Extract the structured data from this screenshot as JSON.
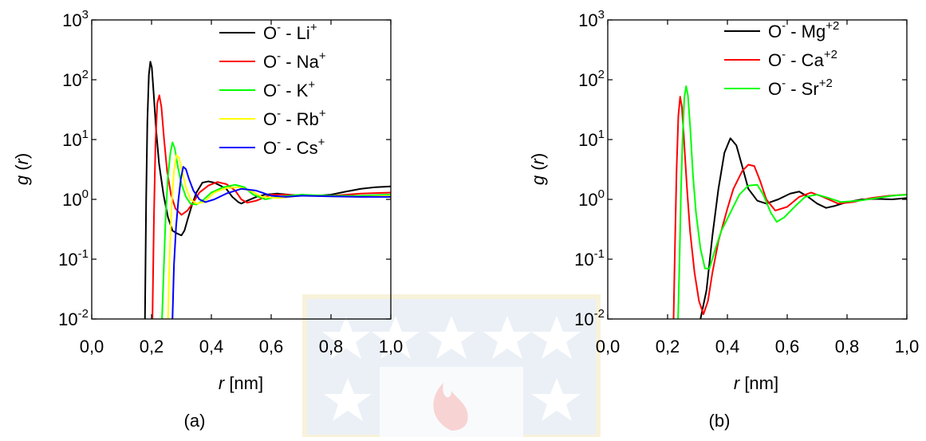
{
  "chart_data": [
    {
      "type": "line",
      "panel_label": "(a)",
      "xlabel_italic": "r",
      "xlabel_unit": " [nm]",
      "ylabel_italic_1": "g",
      "ylabel_mid": " (",
      "ylabel_italic_2": "r",
      "ylabel_end": ")",
      "xlim": [
        0.0,
        1.0
      ],
      "ylim": [
        0.01,
        1000
      ],
      "yscale": "log",
      "grid": false,
      "legend_position": "top-right",
      "x_ticks": [
        {
          "value": 0.0,
          "label": "0,0"
        },
        {
          "value": 0.2,
          "label": "0,2"
        },
        {
          "value": 0.4,
          "label": "0,4"
        },
        {
          "value": 0.6,
          "label": "0,6"
        },
        {
          "value": 0.8,
          "label": "0,8"
        },
        {
          "value": 1.0,
          "label": "1,0"
        }
      ],
      "y_ticks": [
        {
          "value": 1000,
          "base": "10",
          "exp": "3"
        },
        {
          "value": 100,
          "base": "10",
          "exp": "2"
        },
        {
          "value": 10,
          "base": "10",
          "exp": "1"
        },
        {
          "value": 1,
          "base": "10",
          "exp": "0"
        },
        {
          "value": 0.1,
          "base": "10",
          "exp": "-1"
        },
        {
          "value": 0.01,
          "base": "10",
          "exp": "-2"
        }
      ],
      "series": [
        {
          "label_main": "O",
          "label_sup1": "-",
          "label_mid": " - Li",
          "label_sup2": "+",
          "color": "#000000",
          "points": [
            [
              0.178,
              0.01
            ],
            [
              0.182,
              1
            ],
            [
              0.186,
              20
            ],
            [
              0.191,
              120
            ],
            [
              0.196,
              200
            ],
            [
              0.201,
              160
            ],
            [
              0.207,
              60
            ],
            [
              0.215,
              15
            ],
            [
              0.225,
              4
            ],
            [
              0.24,
              1.2
            ],
            [
              0.255,
              0.5
            ],
            [
              0.27,
              0.3
            ],
            [
              0.285,
              0.27
            ],
            [
              0.3,
              0.25
            ],
            [
              0.31,
              0.3
            ],
            [
              0.32,
              0.45
            ],
            [
              0.335,
              0.8
            ],
            [
              0.35,
              1.3
            ],
            [
              0.37,
              1.9
            ],
            [
              0.39,
              2.0
            ],
            [
              0.41,
              1.9
            ],
            [
              0.43,
              1.7
            ],
            [
              0.45,
              1.5
            ],
            [
              0.47,
              1.1
            ],
            [
              0.49,
              0.9
            ],
            [
              0.5,
              0.85
            ],
            [
              0.52,
              0.95
            ],
            [
              0.55,
              1.1
            ],
            [
              0.58,
              1.2
            ],
            [
              0.62,
              1.25
            ],
            [
              0.66,
              1.2
            ],
            [
              0.7,
              1.15
            ],
            [
              0.75,
              1.15
            ],
            [
              0.8,
              1.2
            ],
            [
              0.85,
              1.35
            ],
            [
              0.9,
              1.5
            ],
            [
              0.95,
              1.6
            ],
            [
              1.0,
              1.65
            ]
          ]
        },
        {
          "label_main": "O",
          "label_sup1": "-",
          "label_mid": " - Na",
          "label_sup2": "+",
          "color": "#ff0000",
          "points": [
            [
              0.203,
              0.01
            ],
            [
              0.208,
              0.5
            ],
            [
              0.213,
              8
            ],
            [
              0.219,
              40
            ],
            [
              0.226,
              55
            ],
            [
              0.233,
              35
            ],
            [
              0.242,
              10
            ],
            [
              0.252,
              3
            ],
            [
              0.265,
              1.2
            ],
            [
              0.28,
              0.7
            ],
            [
              0.3,
              0.55
            ],
            [
              0.32,
              0.65
            ],
            [
              0.34,
              0.9
            ],
            [
              0.36,
              1.3
            ],
            [
              0.39,
              1.7
            ],
            [
              0.42,
              1.95
            ],
            [
              0.45,
              1.8
            ],
            [
              0.48,
              1.4
            ],
            [
              0.5,
              1.0
            ],
            [
              0.52,
              0.88
            ],
            [
              0.55,
              0.95
            ],
            [
              0.6,
              1.2
            ],
            [
              0.65,
              1.2
            ],
            [
              0.7,
              1.15
            ],
            [
              0.8,
              1.15
            ],
            [
              0.9,
              1.25
            ],
            [
              1.0,
              1.3
            ]
          ]
        },
        {
          "label_main": "O",
          "label_sup1": "-",
          "label_mid": " - K",
          "label_sup2": "+",
          "color": "#00ff00",
          "points": [
            [
              0.235,
              0.01
            ],
            [
              0.24,
              0.05
            ],
            [
              0.247,
              0.5
            ],
            [
              0.255,
              2.5
            ],
            [
              0.263,
              6
            ],
            [
              0.27,
              9
            ],
            [
              0.278,
              7
            ],
            [
              0.288,
              3.5
            ],
            [
              0.3,
              1.8
            ],
            [
              0.315,
              1.1
            ],
            [
              0.33,
              0.85
            ],
            [
              0.35,
              0.82
            ],
            [
              0.37,
              0.95
            ],
            [
              0.4,
              1.3
            ],
            [
              0.44,
              1.6
            ],
            [
              0.48,
              1.75
            ],
            [
              0.51,
              1.6
            ],
            [
              0.54,
              1.2
            ],
            [
              0.58,
              1.0
            ],
            [
              0.62,
              1.1
            ],
            [
              0.7,
              1.2
            ],
            [
              0.8,
              1.15
            ],
            [
              0.9,
              1.15
            ],
            [
              1.0,
              1.2
            ]
          ]
        },
        {
          "label_main": "O",
          "label_sup1": "-",
          "label_mid": " - Rb",
          "label_sup2": "+",
          "color": "#ffff00",
          "points": [
            [
              0.255,
              0.01
            ],
            [
              0.26,
              0.1
            ],
            [
              0.267,
              0.8
            ],
            [
              0.275,
              3
            ],
            [
              0.283,
              5.5
            ],
            [
              0.292,
              5
            ],
            [
              0.302,
              3
            ],
            [
              0.315,
              1.6
            ],
            [
              0.33,
              1.0
            ],
            [
              0.35,
              0.85
            ],
            [
              0.375,
              0.9
            ],
            [
              0.41,
              1.3
            ],
            [
              0.45,
              1.55
            ],
            [
              0.49,
              1.6
            ],
            [
              0.53,
              1.4
            ],
            [
              0.57,
              1.1
            ],
            [
              0.62,
              1.05
            ],
            [
              0.7,
              1.15
            ],
            [
              0.8,
              1.12
            ],
            [
              0.9,
              1.1
            ],
            [
              1.0,
              1.15
            ]
          ]
        },
        {
          "label_main": "O",
          "label_sup1": "-",
          "label_mid": " - Cs",
          "label_sup2": "+",
          "color": "#0000ff",
          "points": [
            [
              0.27,
              0.01
            ],
            [
              0.275,
              0.08
            ],
            [
              0.282,
              0.35
            ],
            [
              0.29,
              1.0
            ],
            [
              0.298,
              2.2
            ],
            [
              0.306,
              3.5
            ],
            [
              0.315,
              3.2
            ],
            [
              0.325,
              2.2
            ],
            [
              0.34,
              1.4
            ],
            [
              0.36,
              1.0
            ],
            [
              0.38,
              0.9
            ],
            [
              0.41,
              1.0
            ],
            [
              0.45,
              1.25
            ],
            [
              0.5,
              1.5
            ],
            [
              0.55,
              1.4
            ],
            [
              0.6,
              1.15
            ],
            [
              0.65,
              1.1
            ],
            [
              0.7,
              1.15
            ],
            [
              0.8,
              1.12
            ],
            [
              0.9,
              1.1
            ],
            [
              1.0,
              1.1
            ]
          ]
        }
      ]
    },
    {
      "type": "line",
      "panel_label": "(b)",
      "xlabel_italic": "r",
      "xlabel_unit": " [nm]",
      "ylabel_italic_1": "g",
      "ylabel_mid": " (",
      "ylabel_italic_2": "r",
      "ylabel_end": ")",
      "xlim": [
        0.0,
        1.0
      ],
      "ylim": [
        0.01,
        1000
      ],
      "yscale": "log",
      "grid": false,
      "legend_position": "top-right",
      "x_ticks": [
        {
          "value": 0.0,
          "label": "0,0"
        },
        {
          "value": 0.2,
          "label": "0,2"
        },
        {
          "value": 0.4,
          "label": "0,4"
        },
        {
          "value": 0.6,
          "label": "0,6"
        },
        {
          "value": 0.8,
          "label": "0,8"
        },
        {
          "value": 1.0,
          "label": "1,0"
        }
      ],
      "y_ticks": [
        {
          "value": 1000,
          "base": "10",
          "exp": "3"
        },
        {
          "value": 100,
          "base": "10",
          "exp": "2"
        },
        {
          "value": 10,
          "base": "10",
          "exp": "1"
        },
        {
          "value": 1,
          "base": "10",
          "exp": "0"
        },
        {
          "value": 0.1,
          "base": "10",
          "exp": "-1"
        },
        {
          "value": 0.01,
          "base": "10",
          "exp": "-2"
        }
      ],
      "series": [
        {
          "label_main": "O",
          "label_sup1": "-",
          "label_mid": " - Mg",
          "label_sup2": "+2",
          "color": "#000000",
          "points": [
            [
              0.31,
              0.01
            ],
            [
              0.33,
              0.03
            ],
            [
              0.35,
              0.25
            ],
            [
              0.37,
              1.5
            ],
            [
              0.39,
              6
            ],
            [
              0.41,
              10.5
            ],
            [
              0.43,
              8
            ],
            [
              0.45,
              3.5
            ],
            [
              0.47,
              1.5
            ],
            [
              0.5,
              0.95
            ],
            [
              0.53,
              0.85
            ],
            [
              0.57,
              1.0
            ],
            [
              0.61,
              1.25
            ],
            [
              0.64,
              1.35
            ],
            [
              0.67,
              1.1
            ],
            [
              0.7,
              0.85
            ],
            [
              0.73,
              0.72
            ],
            [
              0.76,
              0.78
            ],
            [
              0.8,
              0.9
            ],
            [
              0.85,
              1.0
            ],
            [
              0.9,
              1.02
            ],
            [
              0.95,
              1.0
            ],
            [
              1.0,
              1.05
            ]
          ]
        },
        {
          "label_main": "O",
          "label_sup1": "-",
          "label_mid": " - Ca",
          "label_sup2": "+2",
          "color": "#ff0000",
          "points": [
            [
              0.22,
              0.01
            ],
            [
              0.225,
              0.2
            ],
            [
              0.23,
              3
            ],
            [
              0.236,
              25
            ],
            [
              0.242,
              52
            ],
            [
              0.248,
              35
            ],
            [
              0.256,
              8
            ],
            [
              0.265,
              1.5
            ],
            [
              0.275,
              0.3
            ],
            [
              0.29,
              0.06
            ],
            [
              0.305,
              0.02
            ],
            [
              0.32,
              0.012
            ],
            [
              0.335,
              0.02
            ],
            [
              0.35,
              0.06
            ],
            [
              0.37,
              0.2
            ],
            [
              0.4,
              0.7
            ],
            [
              0.42,
              1.5
            ],
            [
              0.45,
              3
            ],
            [
              0.47,
              3.8
            ],
            [
              0.49,
              3.6
            ],
            [
              0.51,
              2.0
            ],
            [
              0.53,
              1.0
            ],
            [
              0.56,
              0.65
            ],
            [
              0.6,
              0.75
            ],
            [
              0.64,
              1.1
            ],
            [
              0.68,
              1.3
            ],
            [
              0.72,
              1.1
            ],
            [
              0.77,
              0.85
            ],
            [
              0.82,
              0.9
            ],
            [
              0.88,
              1.05
            ],
            [
              0.94,
              1.15
            ],
            [
              1.0,
              1.2
            ]
          ]
        },
        {
          "label_main": "O",
          "label_sup1": "-",
          "label_mid": " - Sr",
          "label_sup2": "+2",
          "color": "#00ff00",
          "points": [
            [
              0.235,
              0.01
            ],
            [
              0.24,
              0.1
            ],
            [
              0.245,
              1.5
            ],
            [
              0.25,
              10
            ],
            [
              0.256,
              50
            ],
            [
              0.262,
              78
            ],
            [
              0.268,
              55
            ],
            [
              0.276,
              15
            ],
            [
              0.285,
              2.5
            ],
            [
              0.295,
              0.6
            ],
            [
              0.31,
              0.15
            ],
            [
              0.325,
              0.07
            ],
            [
              0.34,
              0.07
            ],
            [
              0.36,
              0.15
            ],
            [
              0.38,
              0.3
            ],
            [
              0.41,
              0.6
            ],
            [
              0.44,
              1.2
            ],
            [
              0.47,
              1.7
            ],
            [
              0.5,
              1.75
            ],
            [
              0.52,
              1.2
            ],
            [
              0.545,
              0.6
            ],
            [
              0.565,
              0.42
            ],
            [
              0.59,
              0.5
            ],
            [
              0.63,
              0.8
            ],
            [
              0.66,
              1.1
            ],
            [
              0.7,
              1.2
            ],
            [
              0.74,
              1.05
            ],
            [
              0.78,
              0.9
            ],
            [
              0.84,
              0.95
            ],
            [
              0.9,
              1.05
            ],
            [
              0.95,
              1.15
            ],
            [
              1.0,
              1.2
            ]
          ]
        }
      ]
    }
  ]
}
